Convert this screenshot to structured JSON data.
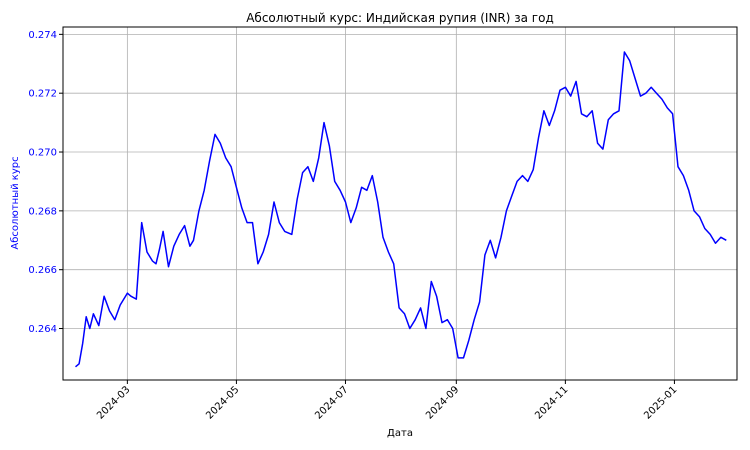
{
  "chart_data": {
    "type": "line",
    "title": "Абсолютный курс: Индийская рупия (INR) за год",
    "xlabel": "Дата",
    "ylabel": "Абсолютный курс",
    "grid": true,
    "legend": "none",
    "colors": {
      "line": "#0000ff",
      "ylabel": "#0000ff",
      "grid": "#b0b0b0"
    },
    "x_ticks": [
      "2024-03",
      "2024-05",
      "2024-07",
      "2024-09",
      "2024-11",
      "2025-01"
    ],
    "y_ticks": [
      "0.264",
      "0.266",
      "0.268",
      "0.270",
      "0.272",
      "0.274"
    ],
    "xlim": [
      "2024-01-25",
      "2025-02-05"
    ],
    "ylim": [
      0.26225,
      0.27425
    ],
    "series": [
      {
        "x": [
          "2024-02-01",
          "2024-02-03",
          "2024-02-05",
          "2024-02-07",
          "2024-02-09",
          "2024-02-11",
          "2024-02-14",
          "2024-02-17",
          "2024-02-20",
          "2024-02-23",
          "2024-02-26",
          "2024-03-01",
          "2024-03-03",
          "2024-03-06",
          "2024-03-09",
          "2024-03-12",
          "2024-03-15",
          "2024-03-17",
          "2024-03-19",
          "2024-03-21",
          "2024-03-24",
          "2024-03-27",
          "2024-03-30",
          "2024-04-02",
          "2024-04-05",
          "2024-04-07",
          "2024-04-10",
          "2024-04-13",
          "2024-04-16",
          "2024-04-19",
          "2024-04-22",
          "2024-04-25",
          "2024-04-28",
          "2024-05-01",
          "2024-05-04",
          "2024-05-07",
          "2024-05-10",
          "2024-05-13",
          "2024-05-16",
          "2024-05-19",
          "2024-05-22",
          "2024-05-25",
          "2024-05-28",
          "2024-06-01",
          "2024-06-04",
          "2024-06-07",
          "2024-06-10",
          "2024-06-13",
          "2024-06-16",
          "2024-06-19",
          "2024-06-22",
          "2024-06-25",
          "2024-06-28",
          "2024-07-01",
          "2024-07-04",
          "2024-07-07",
          "2024-07-10",
          "2024-07-13",
          "2024-07-16",
          "2024-07-19",
          "2024-07-22",
          "2024-07-25",
          "2024-07-28",
          "2024-07-31",
          "2024-08-03",
          "2024-08-06",
          "2024-08-09",
          "2024-08-12",
          "2024-08-15",
          "2024-08-18",
          "2024-08-21",
          "2024-08-24",
          "2024-08-27",
          "2024-08-30",
          "2024-09-02",
          "2024-09-05",
          "2024-09-08",
          "2024-09-11",
          "2024-09-14",
          "2024-09-17",
          "2024-09-20",
          "2024-09-23",
          "2024-09-26",
          "2024-09-29",
          "2024-10-02",
          "2024-10-05",
          "2024-10-08",
          "2024-10-11",
          "2024-10-14",
          "2024-10-17",
          "2024-10-20",
          "2024-10-23",
          "2024-10-26",
          "2024-10-29",
          "2024-11-01",
          "2024-11-04",
          "2024-11-07",
          "2024-11-10",
          "2024-11-13",
          "2024-11-16",
          "2024-11-19",
          "2024-11-22",
          "2024-11-25",
          "2024-11-28",
          "2024-12-01",
          "2024-12-04",
          "2024-12-07",
          "2024-12-10",
          "2024-12-13",
          "2024-12-16",
          "2024-12-19",
          "2024-12-22",
          "2024-12-25",
          "2024-12-28",
          "2024-12-31",
          "2025-01-03",
          "2025-01-06",
          "2025-01-09",
          "2025-01-12",
          "2025-01-15",
          "2025-01-18",
          "2025-01-21",
          "2025-01-24",
          "2025-01-27",
          "2025-01-30"
        ],
        "values": [
          0.2627,
          0.2628,
          0.2635,
          0.2644,
          0.264,
          0.2645,
          0.2641,
          0.2651,
          0.2646,
          0.2643,
          0.2648,
          0.2652,
          0.2651,
          0.265,
          0.2676,
          0.2666,
          0.2663,
          0.2662,
          0.2667,
          0.2673,
          0.2661,
          0.2668,
          0.2672,
          0.2675,
          0.2668,
          0.267,
          0.268,
          0.2687,
          0.2697,
          0.2706,
          0.2703,
          0.2698,
          0.2695,
          0.2688,
          0.2681,
          0.2676,
          0.2676,
          0.2662,
          0.2666,
          0.2672,
          0.2683,
          0.2676,
          0.2673,
          0.2672,
          0.2684,
          0.2693,
          0.2695,
          0.269,
          0.2698,
          0.271,
          0.2702,
          0.269,
          0.2687,
          0.2683,
          0.2676,
          0.2681,
          0.2688,
          0.2687,
          0.2692,
          0.2683,
          0.2671,
          0.2666,
          0.2662,
          0.2647,
          0.2645,
          0.264,
          0.2643,
          0.2647,
          0.264,
          0.2656,
          0.2651,
          0.2642,
          0.2643,
          0.264,
          0.263,
          0.263,
          0.2636,
          0.2643,
          0.2649,
          0.2665,
          0.267,
          0.2664,
          0.2671,
          0.268,
          0.2685,
          0.269,
          0.2692,
          0.269,
          0.2694,
          0.2705,
          0.2714,
          0.2709,
          0.2714,
          0.2721,
          0.2722,
          0.2719,
          0.2724,
          0.2713,
          0.2712,
          0.2714,
          0.2703,
          0.2701,
          0.2711,
          0.2713,
          0.2714,
          0.2734,
          0.2731,
          0.2725,
          0.2719,
          0.272,
          0.2722,
          0.272,
          0.2718,
          0.2715,
          0.2713,
          0.2695,
          0.2692,
          0.2687,
          0.268,
          0.2678,
          0.2674,
          0.2672,
          0.2669,
          0.2671,
          0.267
        ]
      }
    ]
  }
}
